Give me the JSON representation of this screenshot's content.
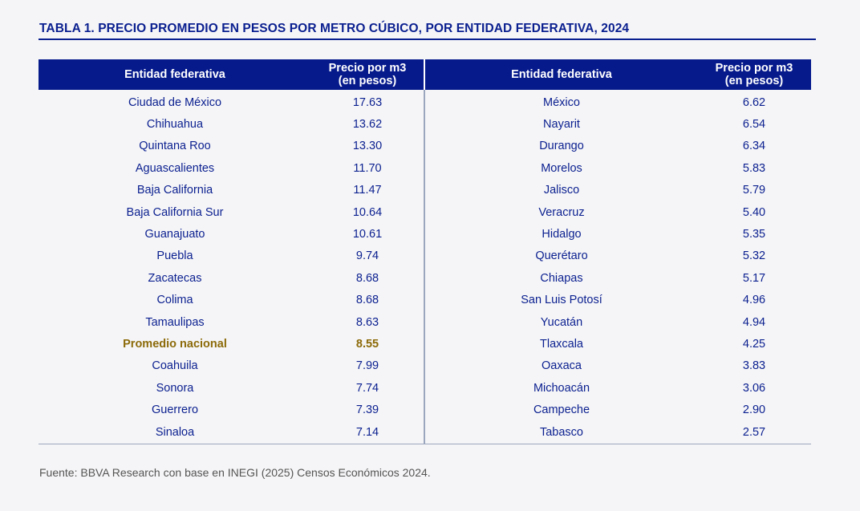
{
  "title": "TABLA 1. PRECIO PROMEDIO EN PESOS POR METRO CÚBICO, POR ENTIDAD FEDERATIVA, 2024",
  "header": {
    "state_label": "Entidad federativa",
    "price_label_line1": "Precio por m3",
    "price_label_line2": "(en pesos)"
  },
  "left_rows": [
    {
      "state": "Ciudad de México",
      "price": "17.63"
    },
    {
      "state": "Chihuahua",
      "price": "13.62"
    },
    {
      "state": "Quintana Roo",
      "price": "13.30"
    },
    {
      "state": "Aguascalientes",
      "price": "11.70"
    },
    {
      "state": "Baja California",
      "price": "11.47"
    },
    {
      "state": "Baja California Sur",
      "price": "10.64"
    },
    {
      "state": "Guanajuato",
      "price": "10.61"
    },
    {
      "state": "Puebla",
      "price": "9.74"
    },
    {
      "state": "Zacatecas",
      "price": "8.68"
    },
    {
      "state": "Colima",
      "price": "8.68"
    },
    {
      "state": "Tamaulipas",
      "price": "8.63"
    },
    {
      "state": "Promedio nacional",
      "price": "8.55",
      "highlight": true
    },
    {
      "state": "Coahuila",
      "price": "7.99"
    },
    {
      "state": "Sonora",
      "price": "7.74"
    },
    {
      "state": "Guerrero",
      "price": "7.39"
    },
    {
      "state": "Sinaloa",
      "price": "7.14"
    }
  ],
  "right_rows": [
    {
      "state": "México",
      "price": "6.62"
    },
    {
      "state": "Nayarit",
      "price": "6.54"
    },
    {
      "state": "Durango",
      "price": "6.34"
    },
    {
      "state": "Morelos",
      "price": "5.83"
    },
    {
      "state": "Jalisco",
      "price": "5.79"
    },
    {
      "state": "Veracruz",
      "price": "5.40"
    },
    {
      "state": "Hidalgo",
      "price": "5.35"
    },
    {
      "state": "Querétaro",
      "price": "5.32"
    },
    {
      "state": "Chiapas",
      "price": "5.17"
    },
    {
      "state": "San Luis Potosí",
      "price": "4.96"
    },
    {
      "state": "Yucatán",
      "price": "4.94"
    },
    {
      "state": "Tlaxcala",
      "price": "4.25"
    },
    {
      "state": "Oaxaca",
      "price": "3.83"
    },
    {
      "state": "Michoacán",
      "price": "3.06"
    },
    {
      "state": "Campeche",
      "price": "2.90"
    },
    {
      "state": "Tabasco",
      "price": "2.57"
    }
  ],
  "source": "Fuente: BBVA Research con base en INEGI (2025) Censos Económicos 2024.",
  "colors": {
    "header_bg": "#061a8c",
    "text": "#0a1f8f",
    "highlight": "#8c6a09"
  }
}
